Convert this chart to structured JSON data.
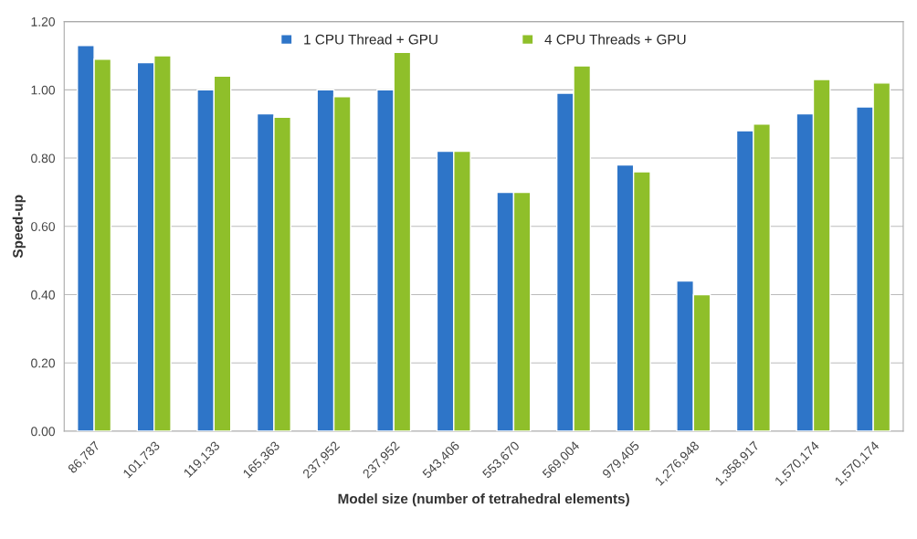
{
  "chart_data": {
    "type": "bar",
    "xlabel": "Model size (number of tetrahedral elements)",
    "ylabel": "Speed-up",
    "categories": [
      "86,787",
      "101,733",
      "119,133",
      "165,363",
      "237,952",
      "237,952",
      "543,406",
      "553,670",
      "569,004",
      "979,405",
      "1,276,948",
      "1,358,917",
      "1,570,174",
      "1,570,174"
    ],
    "series": [
      {
        "name": "1 CPU Thread + GPU",
        "color": "#2e75c8",
        "values": [
          1.13,
          1.08,
          1.0,
          0.93,
          1.0,
          1.0,
          0.82,
          0.7,
          0.99,
          0.78,
          0.44,
          0.88,
          0.93,
          0.95
        ]
      },
      {
        "name": "4 CPU Threads + GPU",
        "color": "#8fbf2a",
        "values": [
          1.09,
          1.1,
          1.04,
          0.92,
          0.98,
          1.11,
          0.82,
          0.7,
          1.07,
          0.76,
          0.4,
          0.9,
          1.03,
          1.02
        ]
      }
    ],
    "ylim": [
      0,
      1.2
    ],
    "yticks": [
      {
        "value": 0,
        "label": "0.00"
      },
      {
        "value": 0.2,
        "label": "0.20"
      },
      {
        "value": 0.4,
        "label": "0.40"
      },
      {
        "value": 0.6,
        "label": "0.60"
      },
      {
        "value": 0.8,
        "label": "0.80"
      },
      {
        "value": 1.0,
        "label": "1.00"
      },
      {
        "value": 1.2,
        "label": "1.20"
      }
    ],
    "grid": "y",
    "legend": "top"
  }
}
